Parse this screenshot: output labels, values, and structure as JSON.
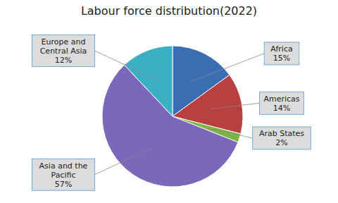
{
  "chart_data": {
    "type": "pie",
    "title": "Labour force distribution(2022)",
    "categories": [
      "Africa",
      "Americas",
      "Arab States",
      "Asia and the\nPacific",
      "Europe and\nCentral Asia"
    ],
    "values": [
      15,
      14,
      2,
      57,
      12
    ],
    "value_labels": [
      "15%",
      "14%",
      "2%",
      "57%",
      "12%"
    ],
    "colors": [
      "#3B6DB3",
      "#B84040",
      "#7CB342",
      "#7B68BB",
      "#3BAFC4"
    ],
    "data_labels": true
  }
}
